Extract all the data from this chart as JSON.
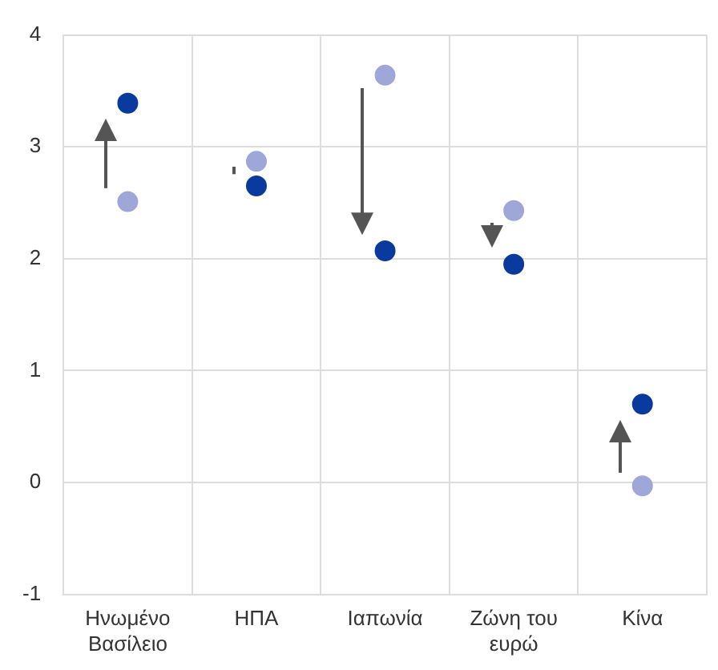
{
  "chart_data": {
    "type": "scatter",
    "categories": [
      "Ηνωμένο Βασίλειο",
      "ΗΠΑ",
      "Ιαπωνία",
      "Ζώνη του ευρώ",
      "Κίνα"
    ],
    "series": [
      {
        "color": "#9fa6d8",
        "values": [
          2.51,
          2.87,
          3.64,
          2.43,
          -0.03
        ]
      },
      {
        "color": "#0a3a9e",
        "values": [
          3.39,
          2.65,
          2.07,
          1.95,
          0.7
        ]
      }
    ],
    "ylim": [
      -1,
      4
    ],
    "yticks": [
      -1,
      0,
      1,
      2,
      3,
      4
    ],
    "grid": true,
    "marker": "circle"
  }
}
